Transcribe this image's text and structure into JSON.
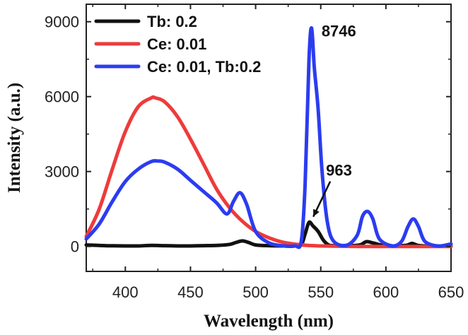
{
  "chart_data": {
    "type": "line",
    "title": "",
    "xlabel": "Wavelength (nm)",
    "ylabel": "Intensity (a.u.)",
    "xlim": [
      370,
      650
    ],
    "ylim": [
      -1000,
      9700
    ],
    "xticks": [
      400,
      450,
      500,
      550,
      600,
      650
    ],
    "yticks": [
      0,
      3000,
      6000,
      9000
    ],
    "grid": false,
    "legend_position": "top-left",
    "series": [
      {
        "name": "Tb: 0.2",
        "color": "#111111",
        "x": [
          370,
          380,
          390,
          400,
          410,
          420,
          430,
          440,
          450,
          460,
          470,
          480,
          485,
          490,
          495,
          500,
          510,
          520,
          530,
          535,
          538,
          541,
          544,
          548,
          552,
          556,
          560,
          570,
          580,
          585,
          590,
          600,
          615,
          620,
          625,
          635,
          650
        ],
        "y": [
          60,
          40,
          25,
          20,
          20,
          40,
          30,
          20,
          20,
          30,
          40,
          80,
          160,
          220,
          150,
          60,
          30,
          20,
          25,
          60,
          500,
          963,
          820,
          600,
          250,
          60,
          30,
          20,
          60,
          190,
          140,
          20,
          40,
          120,
          40,
          15,
          10
        ]
      },
      {
        "name": "Ce: 0.01",
        "color": "#ee3b3b",
        "x": [
          370,
          380,
          390,
          400,
          410,
          420,
          423,
          430,
          440,
          450,
          460,
          470,
          480,
          490,
          500,
          510,
          520,
          530,
          540,
          550,
          560,
          570,
          580,
          600,
          620,
          650
        ],
        "y": [
          400,
          1500,
          3100,
          4600,
          5600,
          5950,
          5950,
          5800,
          5200,
          4300,
          3300,
          2300,
          1550,
          1000,
          600,
          350,
          180,
          90,
          40,
          20,
          10,
          5,
          0,
          0,
          0,
          0
        ]
      },
      {
        "name": "Ce: 0.01, Tb:0.2",
        "color": "#2b3cf0",
        "x": [
          370,
          380,
          390,
          400,
          410,
          420,
          425,
          430,
          440,
          450,
          460,
          470,
          478,
          483,
          488,
          493,
          500,
          510,
          520,
          530,
          535,
          538,
          541,
          543,
          545,
          548,
          551,
          555,
          560,
          570,
          578,
          582,
          586,
          590,
          595,
          605,
          612,
          617,
          621,
          625,
          630,
          640,
          650
        ],
        "y": [
          300,
          900,
          1800,
          2600,
          3100,
          3400,
          3420,
          3380,
          3100,
          2650,
          2200,
          1750,
          1300,
          1800,
          2150,
          1700,
          600,
          150,
          30,
          20,
          200,
          2500,
          7500,
          8746,
          7200,
          5500,
          3000,
          1000,
          200,
          50,
          450,
          1200,
          1400,
          1100,
          300,
          20,
          200,
          800,
          1100,
          800,
          200,
          20,
          100
        ]
      }
    ],
    "annotations": [
      {
        "text": "8746",
        "x": 543,
        "y": 8746
      },
      {
        "text": "963",
        "x": 541,
        "y": 963
      }
    ]
  }
}
